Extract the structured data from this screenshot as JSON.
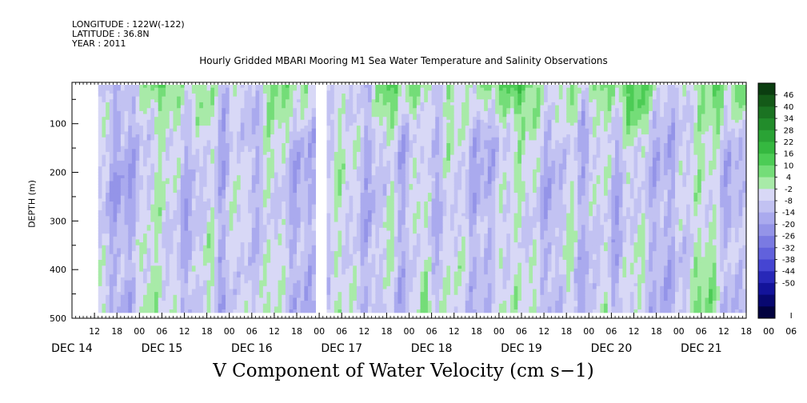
{
  "header": {
    "longitude": "LONGITUDE : 122W(-122)",
    "latitude": "LATITUDE : 36.8N",
    "year": "YEAR : 2011"
  },
  "chart_data": {
    "type": "heatmap",
    "title": "Hourly Gridded MBARI Mooring M1 Sea Water Temperature and Salinity Observations",
    "subtitle": "V Component of Water Velocity (cm s−1)",
    "ylabel": "DEPTH (m)",
    "xlabel": "",
    "y_ticks": [
      "100",
      "200",
      "300",
      "400",
      "500"
    ],
    "x_hour_ticks": [
      "12",
      "18",
      "00",
      "06",
      "12",
      "18",
      "00",
      "06",
      "12",
      "18",
      "00",
      "06",
      "12",
      "18",
      "00",
      "06",
      "12",
      "18",
      "00",
      "06",
      "12",
      "18",
      "00",
      "06",
      "12",
      "18",
      "00",
      "06",
      "12",
      "18",
      "00",
      "06"
    ],
    "x_date_labels": [
      "DEC 14",
      "DEC 15",
      "DEC 16",
      "DEC 17",
      "DEC 18",
      "DEC 19",
      "DEC 20",
      "DEC 21"
    ],
    "x_range_hours": [
      6,
      186
    ],
    "ylim": [
      500,
      15
    ],
    "data_depth_range": [
      20,
      488
    ],
    "data_time_range_hours": [
      13,
      186
    ],
    "data_gap_hours": [
      71.7,
      73.4
    ],
    "colorbar": {
      "labels": [
        "46",
        "40",
        "34",
        "28",
        "22",
        "16",
        "10",
        "4",
        "-2",
        "-8",
        "-14",
        "-20",
        "-26",
        "-32",
        "-38",
        "-44",
        "-50"
      ],
      "colors": [
        "#0b3d10",
        "#145a18",
        "#1b7322",
        "#228c2b",
        "#2aa335",
        "#35b840",
        "#4ccc55",
        "#74dd78",
        "#a8eaa8",
        "#d8d8f6",
        "#c2c2f2",
        "#aaaaee",
        "#9494e8",
        "#7a7ae2",
        "#6161dc",
        "#4545d2",
        "#2828b8",
        "#13139a",
        "#080870",
        "#02023f"
      ]
    }
  }
}
